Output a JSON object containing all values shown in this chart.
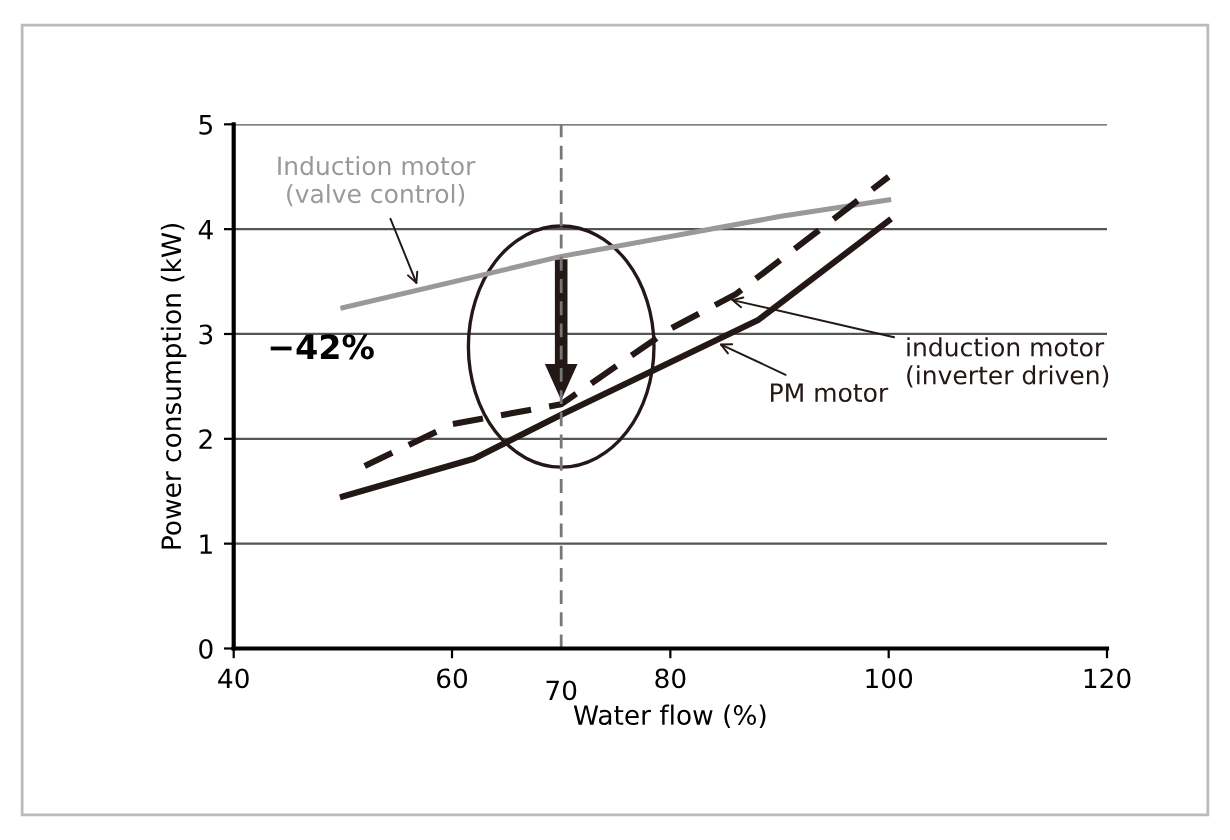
{
  "chart_data": {
    "type": "line",
    "xlabel": "Water flow (%)",
    "ylabel": "Power consumption (kW)",
    "xlim": [
      40,
      120
    ],
    "ylim": [
      0,
      5
    ],
    "xticks": [
      40,
      60,
      80,
      100,
      120
    ],
    "yticks": [
      0,
      1,
      2,
      3,
      4,
      5
    ],
    "grid": "y",
    "marker": "none",
    "series": [
      {
        "name": "Induction motor\n(valve control)",
        "color": "#999999",
        "line_style": "solid",
        "x": [
          50,
          70,
          80,
          90,
          100
        ],
        "values": [
          3.25,
          3.74,
          3.93,
          4.12,
          4.28
        ]
      },
      {
        "name": "induction motor\n(inverter driven)",
        "color": "#231815",
        "line_style": "dashed",
        "x": [
          52,
          60,
          70,
          80,
          86,
          100
        ],
        "values": [
          1.74,
          2.14,
          2.33,
          3.05,
          3.38,
          4.5
        ]
      },
      {
        "name": "PM motor",
        "color": "#231815",
        "line_style": "solid",
        "x": [
          50,
          62,
          70,
          88,
          100
        ],
        "values": [
          1.45,
          1.81,
          2.23,
          3.13,
          4.08
        ]
      }
    ],
    "ref_lines": [
      {
        "axis": "x",
        "value": 70,
        "label": "70",
        "color": "#777777",
        "line_style": "dashed"
      }
    ],
    "annotations": [
      "−42%"
    ]
  }
}
